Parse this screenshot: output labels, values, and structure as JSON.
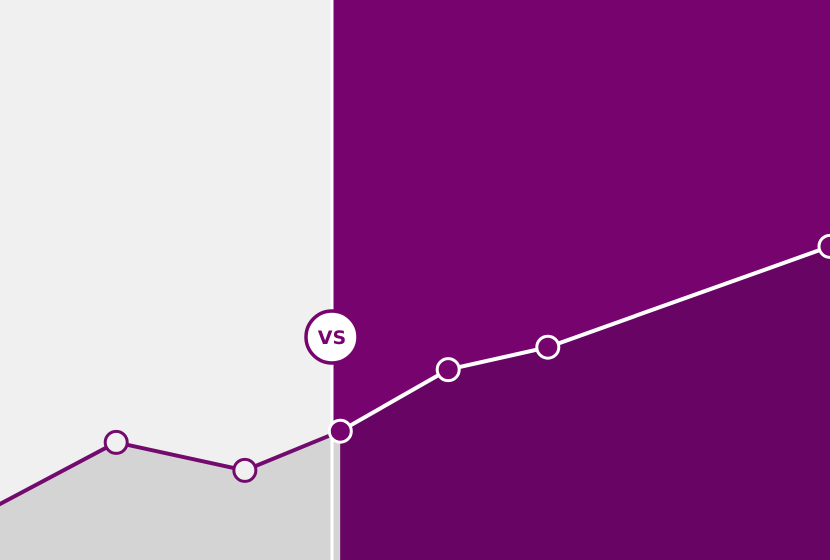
{
  "badge": {
    "label": "VS"
  },
  "colors": {
    "left_background": "#f0f0f0",
    "left_area": "#d4d4d4",
    "left_line": "#730a6e",
    "right_background": "#77046e",
    "right_area": "#680463",
    "right_line": "#ffffff",
    "divider": "#ffffff",
    "badge_fill": "#ffffff",
    "badge_stroke": "#77046e",
    "badge_text": "#77046e"
  },
  "chart_data": {
    "type": "area",
    "grid": false,
    "legend": "none",
    "xlim": [
      0,
      10
    ],
    "ylim": [
      0,
      10
    ],
    "split_x": 4.0,
    "series": [
      {
        "side": "left",
        "points": [
          [
            0,
            1.0
          ],
          [
            1.4,
            2.1
          ],
          [
            2.95,
            1.6
          ],
          [
            4.1,
            2.3
          ]
        ],
        "markers": [
          false,
          true,
          true,
          true
        ]
      },
      {
        "side": "right",
        "points": [
          [
            4.1,
            2.3
          ],
          [
            5.4,
            3.4
          ],
          [
            6.6,
            3.8
          ],
          [
            10.0,
            5.6
          ]
        ],
        "markers": [
          true,
          true,
          true,
          true
        ]
      }
    ]
  }
}
